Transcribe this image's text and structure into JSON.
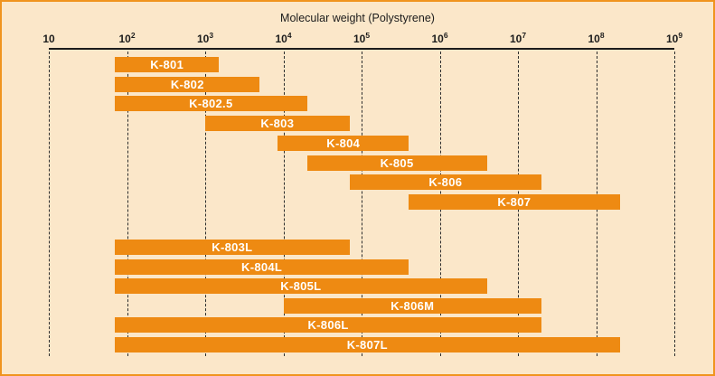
{
  "style": {
    "background": "#fbe7c9",
    "border_color": "#f0941e",
    "bar_color": "#ee8a12",
    "bar_text_color": "#ffffff",
    "axis_color": "#1c1c1c",
    "grid_color": "#2e2e2e"
  },
  "chart_data": {
    "type": "bar",
    "subtype": "horizontal-range-bars",
    "title": "Molecular weight (Polystyrene)",
    "x_scale": "log10",
    "xlim": [
      10,
      1000000000
    ],
    "grid": "vertical-dashed-per-decade",
    "legend": "none",
    "x_ticks": [
      {
        "value": 10,
        "base": "10",
        "exp": ""
      },
      {
        "value": 100,
        "base": "10",
        "exp": "2"
      },
      {
        "value": 1000,
        "base": "10",
        "exp": "3"
      },
      {
        "value": 10000,
        "base": "10",
        "exp": "4"
      },
      {
        "value": 100000,
        "base": "10",
        "exp": "5"
      },
      {
        "value": 1000000,
        "base": "10",
        "exp": "6"
      },
      {
        "value": 10000000,
        "base": "10",
        "exp": "7"
      },
      {
        "value": 100000000,
        "base": "10",
        "exp": "8"
      },
      {
        "value": 1000000000,
        "base": "10",
        "exp": "9"
      }
    ],
    "groups": [
      {
        "bars": [
          {
            "label": "K-801",
            "min": 70,
            "max": 1500
          },
          {
            "label": "K-802",
            "min": 70,
            "max": 5000
          },
          {
            "label": "K-802.5",
            "min": 70,
            "max": 20000
          },
          {
            "label": "K-803",
            "min": 1000,
            "max": 70000
          },
          {
            "label": "K-804",
            "min": 8500,
            "max": 400000
          },
          {
            "label": "K-805",
            "min": 20000,
            "max": 4000000
          },
          {
            "label": "K-806",
            "min": 70000,
            "max": 20000000
          },
          {
            "label": "K-807",
            "min": 400000,
            "max": 200000000
          }
        ]
      },
      {
        "bars": [
          {
            "label": "K-803L",
            "min": 70,
            "max": 70000
          },
          {
            "label": "K-804L",
            "min": 70,
            "max": 400000
          },
          {
            "label": "K-805L",
            "min": 70,
            "max": 4000000
          },
          {
            "label": "K-806M",
            "min": 10000,
            "max": 20000000
          },
          {
            "label": "K-806L",
            "min": 70,
            "max": 20000000
          },
          {
            "label": "K-807L",
            "min": 70,
            "max": 200000000
          }
        ]
      }
    ]
  }
}
